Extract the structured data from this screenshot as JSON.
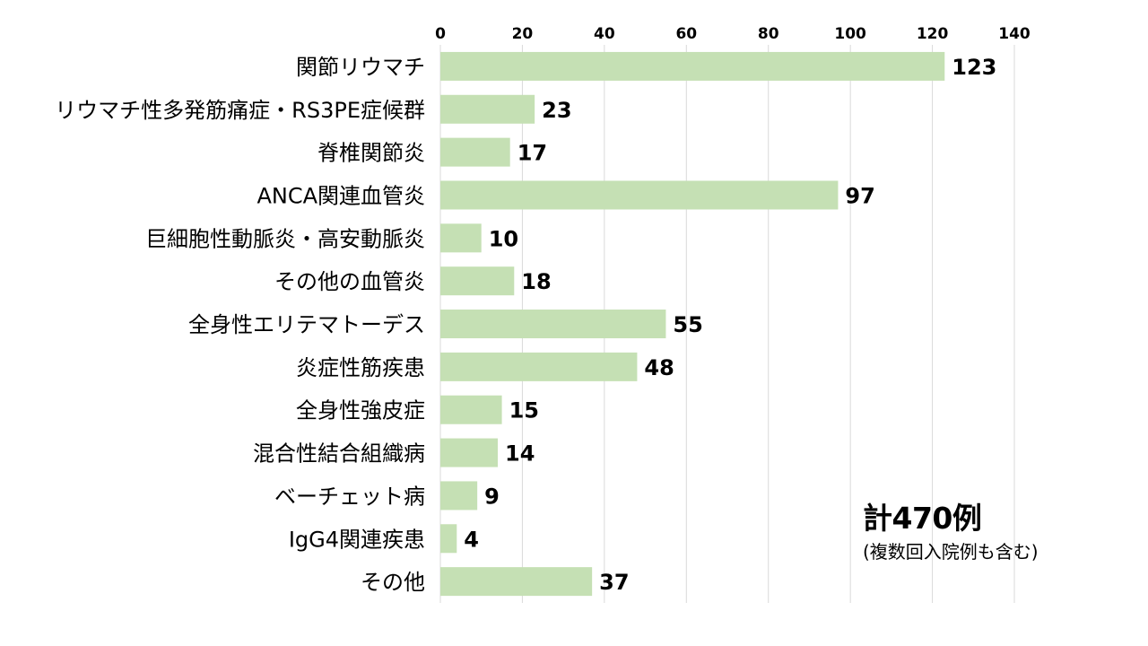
{
  "chart_data": {
    "type": "bar",
    "orientation": "horizontal",
    "categories": [
      "関節リウマチ",
      "リウマチ性多発筋痛症・RS3PE症候群",
      "脊椎関節炎",
      "ANCA関連血管炎",
      "巨細胞性動脈炎・高安動脈炎",
      "その他の血管炎",
      "全身性エリテマトーデス",
      "炎症性筋疾患",
      "全身性強皮症",
      "混合性結合組織病",
      "ベーチェット病",
      "IgG4関連疾患",
      "その他"
    ],
    "values": [
      123,
      23,
      17,
      97,
      10,
      18,
      55,
      48,
      15,
      14,
      9,
      4,
      37
    ],
    "xlim": [
      0,
      140
    ],
    "xticks": [
      0,
      20,
      40,
      60,
      80,
      100,
      120,
      140
    ],
    "x_axis_position": "top",
    "grid": true,
    "legend": "none",
    "title": "",
    "xlabel": "",
    "ylabel": ""
  },
  "colors": {
    "bar": "#c5e0b4",
    "grid": "#d9d9d9",
    "text": "#000000"
  },
  "annotation": {
    "total": "計470例",
    "note": "(複数回入院例も含む)"
  }
}
